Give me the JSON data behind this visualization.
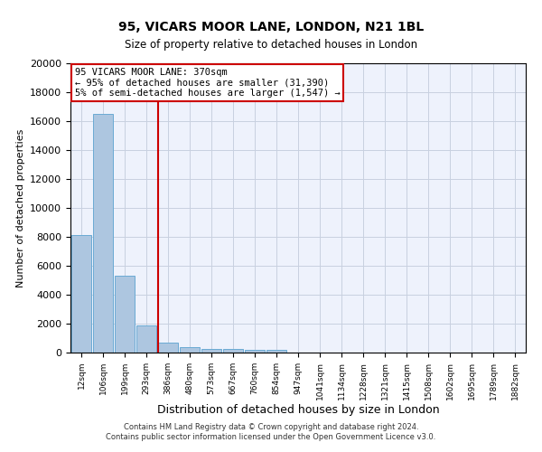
{
  "title1": "95, VICARS MOOR LANE, LONDON, N21 1BL",
  "title2": "Size of property relative to detached houses in London",
  "xlabel": "Distribution of detached houses by size in London",
  "ylabel": "Number of detached properties",
  "bar_color": "#adc6e0",
  "bar_edge_color": "#6aaad4",
  "vline_color": "#cc0000",
  "categories": [
    "12sqm",
    "106sqm",
    "199sqm",
    "293sqm",
    "386sqm",
    "480sqm",
    "573sqm",
    "667sqm",
    "760sqm",
    "854sqm",
    "947sqm",
    "1041sqm",
    "1134sqm",
    "1228sqm",
    "1321sqm",
    "1415sqm",
    "1508sqm",
    "1602sqm",
    "1695sqm",
    "1789sqm",
    "1882sqm"
  ],
  "values": [
    8100,
    16500,
    5300,
    1850,
    700,
    370,
    275,
    225,
    175,
    200,
    0,
    0,
    0,
    0,
    0,
    0,
    0,
    0,
    0,
    0,
    0
  ],
  "ylim": [
    0,
    20000
  ],
  "yticks": [
    0,
    2000,
    4000,
    6000,
    8000,
    10000,
    12000,
    14000,
    16000,
    18000,
    20000
  ],
  "annotation_line1": "95 VICARS MOOR LANE: 370sqm",
  "annotation_line2": "← 95% of detached houses are smaller (31,390)",
  "annotation_line3": "5% of semi-detached houses are larger (1,547) →",
  "footer1": "Contains HM Land Registry data © Crown copyright and database right 2024.",
  "footer2": "Contains public sector information licensed under the Open Government Licence v3.0.",
  "bg_color": "#eef2fc",
  "grid_color": "#c8d0e0",
  "vline_x": 3.55
}
